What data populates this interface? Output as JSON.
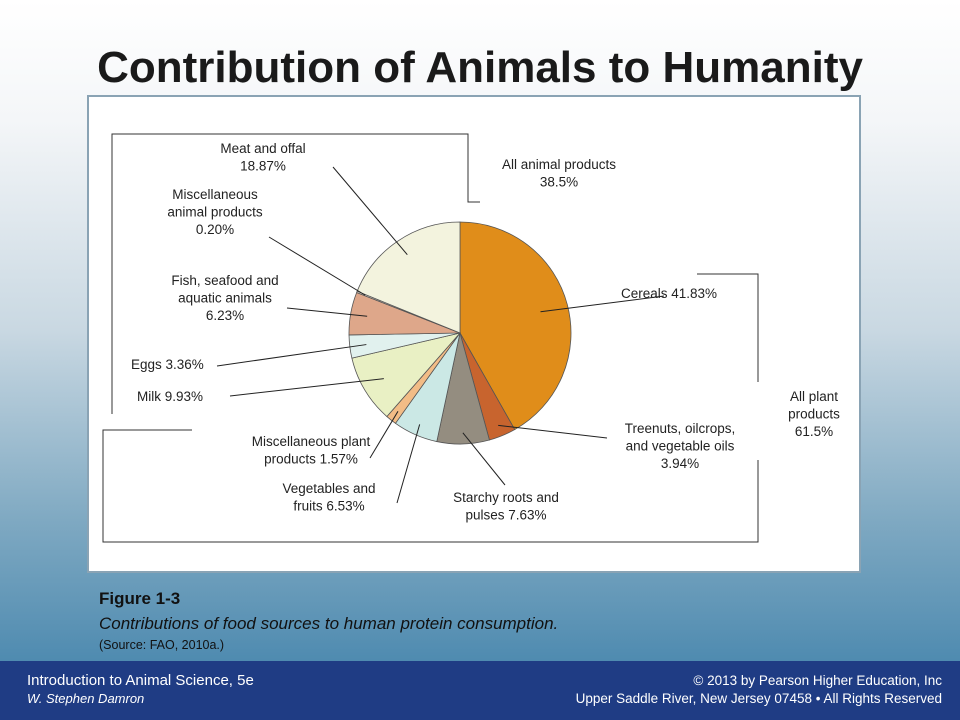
{
  "slide": {
    "title": "Contribution of Animals to Humanity"
  },
  "chart_data": {
    "type": "pie",
    "slices": [
      {
        "label": [
          "Cereals 41.83%"
        ],
        "value": 41.83,
        "color": "#e08d1a"
      },
      {
        "label": [
          "Treenuts, oilcrops,",
          "and vegetable oils",
          "3.94%"
        ],
        "value": 3.94,
        "color": "#c8642e"
      },
      {
        "label": [
          "Starchy roots and",
          "pulses 7.63%"
        ],
        "value": 7.63,
        "color": "#948d80"
      },
      {
        "label": [
          "Vegetables and",
          "fruits 6.53%"
        ],
        "value": 6.53,
        "color": "#cbe8e5"
      },
      {
        "label": [
          "Miscellaneous plant",
          "products 1.57%"
        ],
        "value": 1.57,
        "color": "#f2bc86"
      },
      {
        "label": [
          "Milk 9.93%"
        ],
        "value": 9.93,
        "color": "#e9f0c4"
      },
      {
        "label": [
          "Eggs 3.36%"
        ],
        "value": 3.36,
        "color": "#e1f1ee"
      },
      {
        "label": [
          "Fish, seafood and",
          "aquatic animals",
          "6.23%"
        ],
        "value": 6.23,
        "color": "#dea78a"
      },
      {
        "label": [
          "Miscellaneous",
          "animal products",
          "0.20%"
        ],
        "value": 0.2,
        "color": "#e9e2d6"
      },
      {
        "label": [
          "Meat and offal",
          "18.87%"
        ],
        "value": 18.87,
        "color": "#f3f3de"
      }
    ],
    "groups": [
      {
        "label": [
          "All animal products",
          "38.5%"
        ],
        "value": 38.5
      },
      {
        "label": [
          "All plant",
          "products",
          "61.5%"
        ],
        "value": 61.5
      }
    ]
  },
  "caption": {
    "figure": "Figure 1-3",
    "text": "Contributions of food sources to human protein consumption.",
    "source": "(Source: FAO, 2010a.)"
  },
  "footer": {
    "book": "Introduction to Animal Science, 5e",
    "author": "W. Stephen Damron",
    "copyright": "© 2013 by Pearson Higher Education, Inc",
    "address": "Upper Saddle River, New Jersey 07458 • All Rights Reserved"
  }
}
